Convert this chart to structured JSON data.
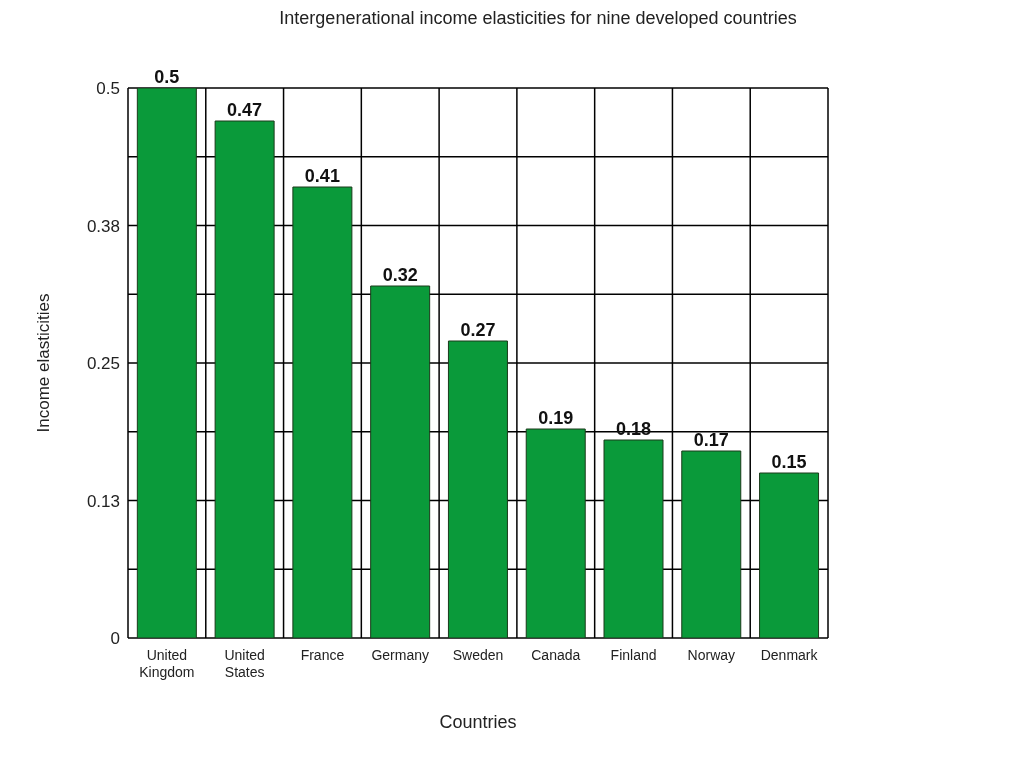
{
  "chart_data": {
    "type": "bar",
    "title": "Intergenerational income elasticities for nine developed countries",
    "xlabel": "Countries",
    "ylabel": "Income elasticities",
    "categories": [
      "United Kingdom",
      "United States",
      "France",
      "Germany",
      "Sweden",
      "Canada",
      "Finland",
      "Norway",
      "Denmark"
    ],
    "values": [
      0.5,
      0.47,
      0.41,
      0.32,
      0.27,
      0.19,
      0.18,
      0.17,
      0.15
    ],
    "color": "#0a9a3a",
    "ylim": [
      0,
      0.5
    ],
    "yticks": [
      0,
      {
        "value": 0.0625,
        "label": null
      },
      {
        "value": 0.125,
        "label": "0.13"
      },
      {
        "value": 0.1875,
        "label": null
      },
      0.25,
      {
        "value": 0.3125,
        "label": null
      },
      {
        "value": 0.375,
        "label": "0.38"
      },
      {
        "value": 0.4375,
        "label": null
      },
      0.5
    ],
    "grid": true,
    "data_labels": true
  }
}
